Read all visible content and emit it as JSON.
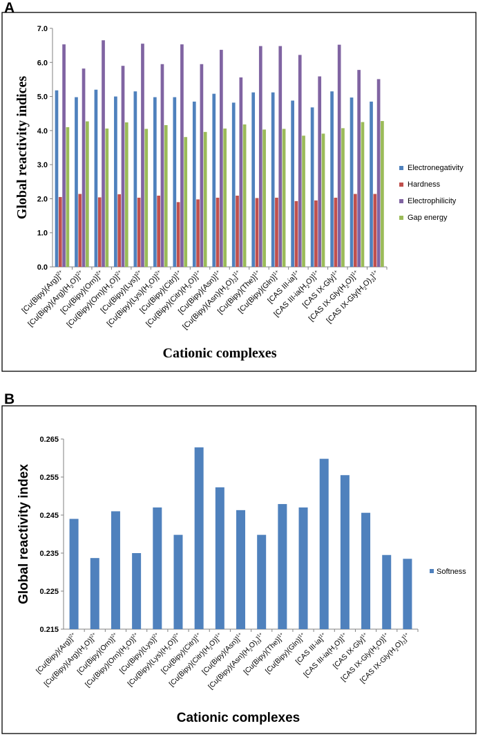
{
  "panel_a_label": "A",
  "panel_b_label": "B",
  "chart_data": [
    {
      "type": "bar",
      "ylabel": "Global reactivity indices",
      "xlabel": "Cationic complexes",
      "ylim": [
        0,
        7
      ],
      "yticks": [
        "0.0",
        "1.0",
        "2.0",
        "3.0",
        "4.0",
        "5.0",
        "6.0",
        "7.0"
      ],
      "categories": [
        [
          "[Cu(Bipy)(Arg)]",
          "2+"
        ],
        [
          "[Cu(Bipy)(Arg)(H",
          "2",
          "O)]",
          "2+"
        ],
        [
          "[Cu(Bipy)(Orn)]",
          "2+"
        ],
        [
          "[Cu(Bipy)(Orn)(H",
          "2",
          "O)]",
          "2+"
        ],
        [
          "[Cu(Bipy)(Lys)]",
          "2+"
        ],
        [
          "[Cu(Bipy)(Lys)(H",
          "2",
          "O)]",
          "2+"
        ],
        [
          "[Cu(Bipy)(Citr)]",
          "1+"
        ],
        [
          "[Cu(Bipy)(Citr)(H",
          "2",
          "O)]",
          "1+"
        ],
        [
          "[Cu(Bipy)(Asn)]",
          "1+"
        ],
        [
          "[Cu(Bipy)(Asn)(H",
          "2",
          "O)",
          "2",
          "]",
          "1+"
        ],
        [
          "[Cu(Bipy)(The)]",
          "1+"
        ],
        [
          "[Cu(Bipy)(Gln)]",
          "1+"
        ],
        [
          "[CAS III-ia]",
          "1+"
        ],
        [
          "[CAS III-ia(H",
          "2",
          "O)]",
          "1+"
        ],
        [
          "[CAS IX-Gly]",
          "1+"
        ],
        [
          "[CAS IX-Gly(H",
          "2",
          "O)]",
          "1+"
        ],
        [
          "[CAS IX-Gly(H",
          "2",
          "O)",
          "2",
          "]",
          "1+"
        ]
      ],
      "series": [
        {
          "name": "Electronegativity",
          "color": "#4f81bd",
          "values": [
            5.18,
            4.98,
            5.2,
            5.0,
            5.15,
            4.98,
            4.98,
            4.85,
            5.08,
            4.82,
            5.12,
            5.12,
            4.88,
            4.68,
            5.15,
            4.97,
            4.85
          ]
        },
        {
          "name": "Hardness",
          "color": "#c0504d",
          "values": [
            2.05,
            2.14,
            2.04,
            2.13,
            2.03,
            2.09,
            1.9,
            1.98,
            2.03,
            2.09,
            2.02,
            2.03,
            1.93,
            1.95,
            2.03,
            2.14,
            2.14
          ]
        },
        {
          "name": "Electrophilicity",
          "color": "#8064a2",
          "values": [
            6.53,
            5.82,
            6.65,
            5.9,
            6.55,
            5.95,
            6.53,
            5.95,
            6.37,
            5.56,
            6.48,
            6.48,
            6.22,
            5.59,
            6.52,
            5.78,
            5.51
          ]
        },
        {
          "name": "Gap energy",
          "color": "#9bbb59",
          "values": [
            4.1,
            4.27,
            4.06,
            4.24,
            4.05,
            4.16,
            3.81,
            3.96,
            4.06,
            4.18,
            4.03,
            4.05,
            3.85,
            3.91,
            4.07,
            4.25,
            4.28
          ]
        }
      ]
    },
    {
      "type": "bar",
      "ylabel": "Global reactivity index",
      "xlabel": "Cationic complexes",
      "ylim": [
        0.215,
        0.265
      ],
      "yticks": [
        "0.215",
        "0.225",
        "0.235",
        "0.245",
        "0.255",
        "0.265"
      ],
      "categories": [
        [
          "[Cu(Bipy)(Arg)]",
          "2+"
        ],
        [
          "[Cu(Bipy)(Arg)(H",
          "2",
          "O)]",
          "2+"
        ],
        [
          "[Cu(Bipy)(Orn)]",
          "2+"
        ],
        [
          "[Cu(Bipy)(Orn)(H",
          "2",
          "O)]",
          "2+"
        ],
        [
          "[Cu(Bipy)(Lys)]",
          "2+"
        ],
        [
          "[Cu(Bipy)(Lys)(H",
          "2",
          "O)]",
          "2+"
        ],
        [
          "[Cu(Bipy)(Citr)]",
          "1+"
        ],
        [
          "[Cu(Bipy)(Citr)(H",
          "2",
          "O)]",
          "1+"
        ],
        [
          "[Cu(Bipy)(Asn)]",
          "1+"
        ],
        [
          "[Cu(Bipy)(Asn)(H",
          "2",
          "O)",
          "2",
          "]",
          "1+"
        ],
        [
          "[Cu(Bipy)(The)]",
          "1+"
        ],
        [
          "[Cu(Bipy)(Gln)]",
          "1+"
        ],
        [
          "[CAS III-ia]",
          "1+"
        ],
        [
          "[CAS III-ia(H",
          "2",
          "O)]",
          "1+"
        ],
        [
          "[CAS IX-Gly]",
          "1+"
        ],
        [
          "[CAS IX-Gly(H",
          "2",
          "O)]",
          "1+"
        ],
        [
          "[CAS IX-Gly(H",
          "2",
          "O)",
          "2",
          "]",
          "1+"
        ]
      ],
      "series": [
        {
          "name": "Softness",
          "color": "#4f81bd",
          "values": [
            0.244,
            0.2337,
            0.246,
            0.235,
            0.247,
            0.2398,
            0.2628,
            0.2523,
            0.2463,
            0.2398,
            0.2479,
            0.247,
            0.2598,
            0.2555,
            0.2456,
            0.2345,
            0.2335
          ]
        }
      ]
    }
  ]
}
